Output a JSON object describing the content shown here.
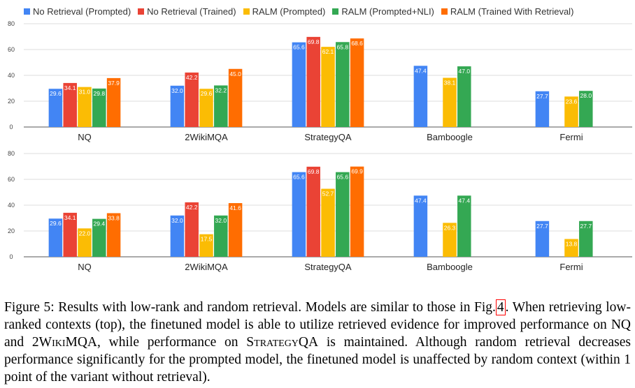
{
  "chart_data": [
    {
      "type": "bar",
      "categories": [
        "NQ",
        "2WikiMQA",
        "StrategyQA",
        "Bamboogle",
        "Fermi"
      ],
      "ylim": [
        0,
        80
      ],
      "yticks": [
        0,
        20,
        40,
        60,
        80
      ],
      "grid": true,
      "legend_position": "top",
      "series": [
        {
          "name": "No Retrieval (Prompted)",
          "color": "#4285f4",
          "values": [
            29.6,
            32.0,
            65.6,
            47.4,
            27.7
          ]
        },
        {
          "name": "No Retrieval (Trained)",
          "color": "#ea4335",
          "values": [
            34.1,
            42.2,
            69.8,
            null,
            null
          ]
        },
        {
          "name": "RALM (Prompted)",
          "color": "#fbbc04",
          "values": [
            31.0,
            29.6,
            62.1,
            38.1,
            23.6
          ]
        },
        {
          "name": "RALM (Prompted+NLI)",
          "color": "#34a853",
          "values": [
            29.8,
            32.2,
            65.8,
            47.0,
            28.0
          ]
        },
        {
          "name": "RALM (Trained With Retrieval)",
          "color": "#ff6d01",
          "values": [
            37.9,
            45.0,
            68.6,
            null,
            null
          ]
        }
      ]
    },
    {
      "type": "bar",
      "categories": [
        "NQ",
        "2WikiMQA",
        "StrategyQA",
        "Bamboogle",
        "Fermi"
      ],
      "ylim": [
        0,
        80
      ],
      "yticks": [
        0,
        20,
        40,
        60,
        80
      ],
      "grid": true,
      "series": [
        {
          "name": "No Retrieval (Prompted)",
          "color": "#4285f4",
          "values": [
            29.6,
            32.0,
            65.6,
            47.4,
            27.7
          ]
        },
        {
          "name": "No Retrieval (Trained)",
          "color": "#ea4335",
          "values": [
            34.1,
            42.2,
            69.8,
            null,
            null
          ]
        },
        {
          "name": "RALM (Prompted)",
          "color": "#fbbc04",
          "values": [
            22.0,
            17.5,
            52.7,
            26.3,
            13.8
          ]
        },
        {
          "name": "RALM (Prompted+NLI)",
          "color": "#34a853",
          "values": [
            29.4,
            32.0,
            65.6,
            47.4,
            27.7
          ]
        },
        {
          "name": "RALM (Trained With Retrieval)",
          "color": "#ff6d01",
          "values": [
            33.8,
            41.6,
            69.9,
            null,
            null
          ]
        }
      ]
    }
  ],
  "caption": {
    "p1": "Figure 5: Results with low-rank and random retrieval. Models are similar to those in Fig.",
    "ref": "4",
    "p2": ". When retrieving low-ranked contexts (top), the finetuned model is able to utilize retrieved evidence for improved performance on NQ and ",
    "sc1": "2WikiMQA",
    "p3": ", while performance on ",
    "sc2": "StrategyQA",
    "p4": " is maintained. Although random retrieval decreases performance significantly for the prompted model, the finetuned model is unaffected by random context (within 1 point of the variant without retrieval)."
  }
}
